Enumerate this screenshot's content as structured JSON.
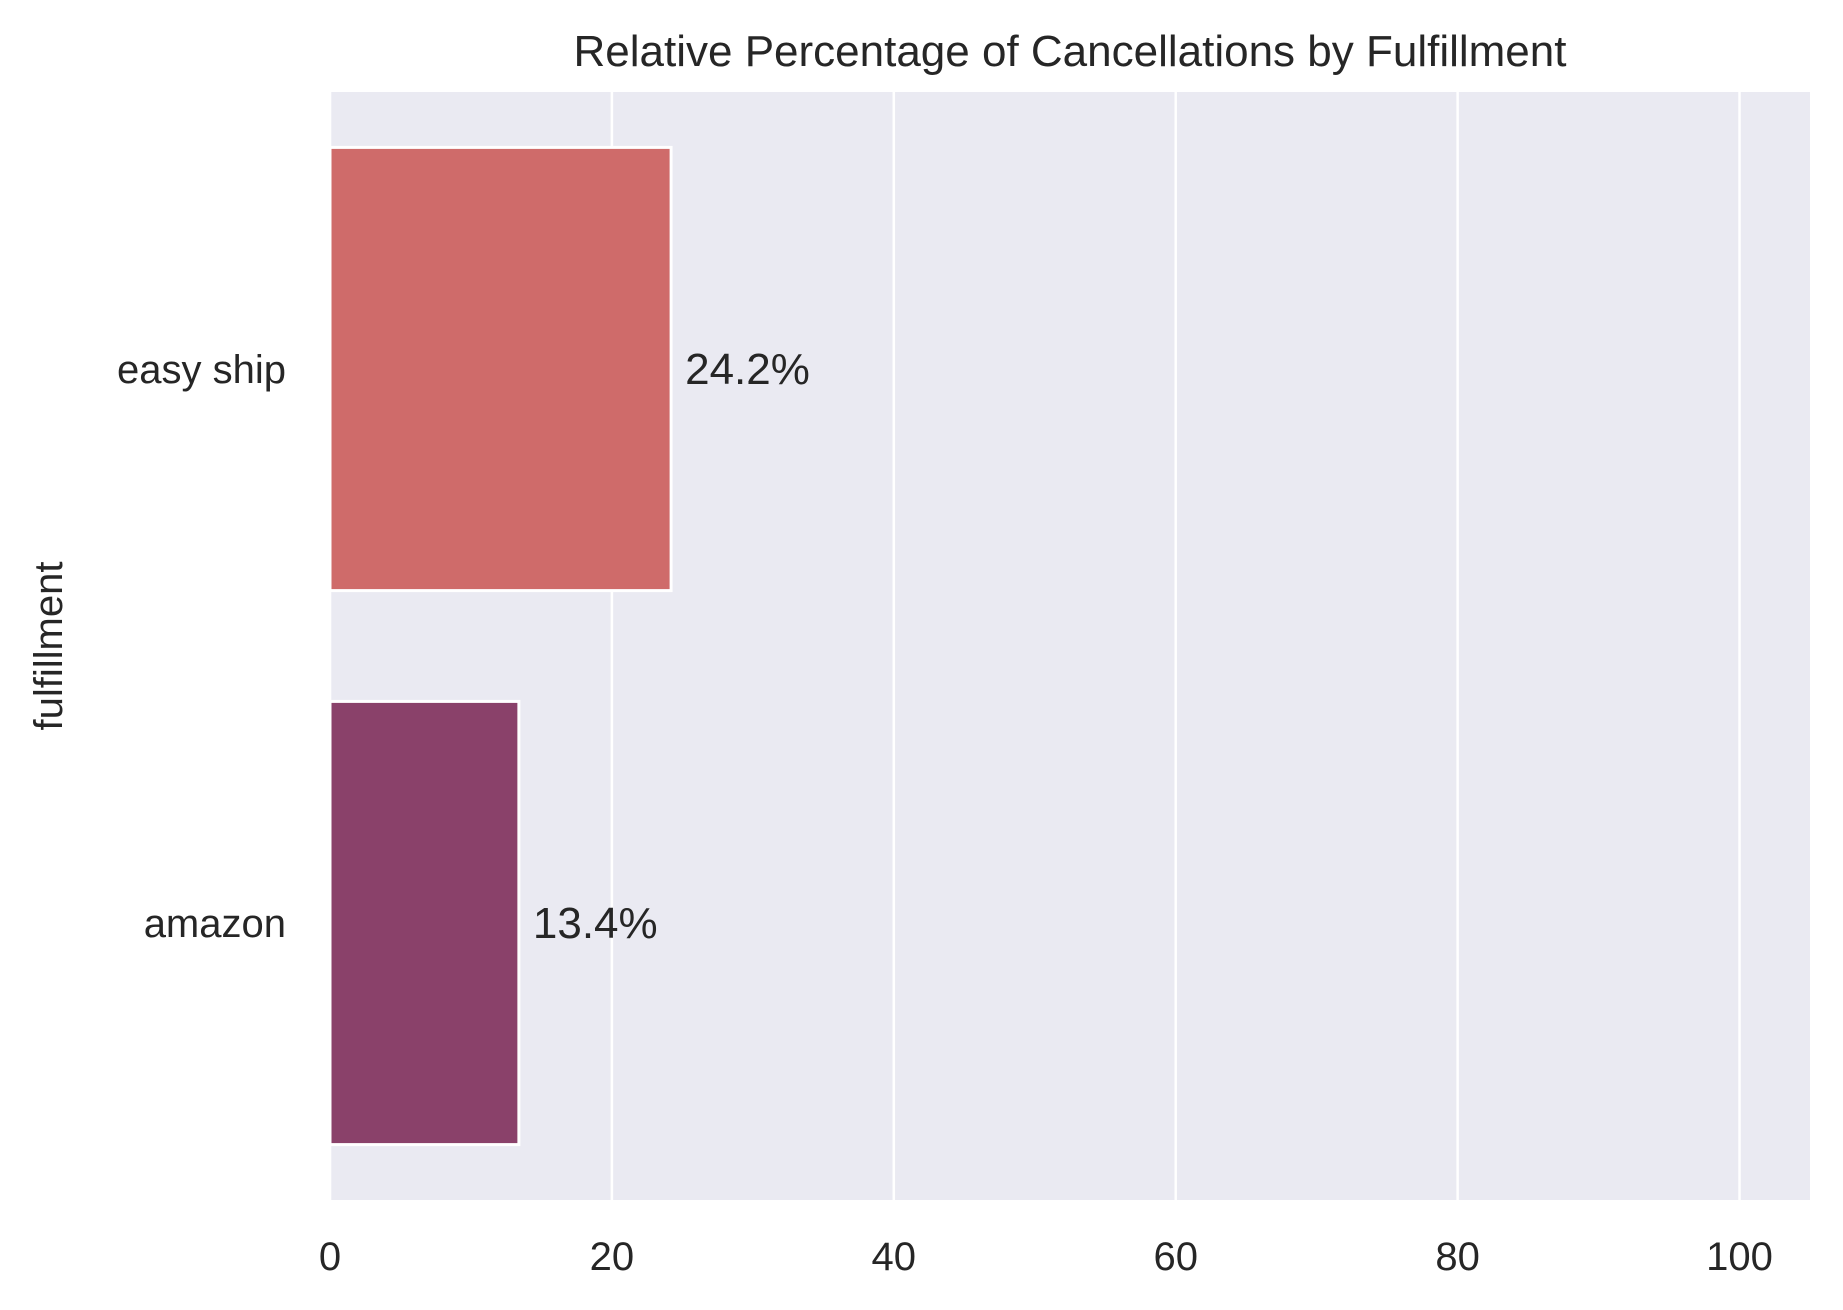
{
  "chart_data": {
    "type": "bar",
    "orientation": "horizontal",
    "title": "Relative Percentage of Cancellations by Fulfillment",
    "xlabel": "",
    "ylabel": "fulfillment",
    "categories": [
      "easy ship",
      "amazon"
    ],
    "values": [
      24.2,
      13.4
    ],
    "data_labels": [
      "24.2%",
      "13.4%"
    ],
    "bar_colors": [
      "#cf6b6a",
      "#8a416a"
    ],
    "xlim": [
      0,
      105
    ],
    "xticks": [
      0,
      20,
      40,
      60,
      80,
      100
    ],
    "grid": true,
    "grid_axis": "x",
    "plot_background": "#eaeaf2",
    "grid_color": "#ffffff"
  }
}
